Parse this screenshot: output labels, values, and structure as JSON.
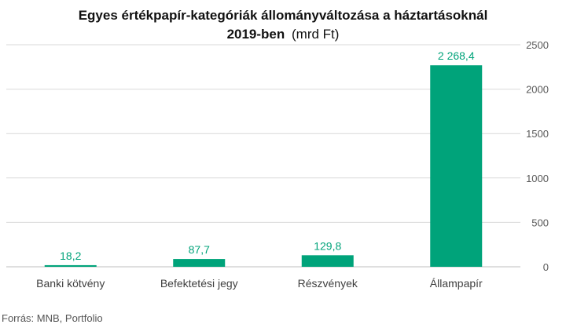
{
  "title_line1": "Egyes értékpapír-kategóriák állományváltozása a háztartásoknál",
  "title_line2": "2019-ben",
  "title_unit": "(mrd Ft)",
  "source": "Forrás: MNB, Portfolio",
  "colors": {
    "bar": "#00a37a",
    "label": "#00a37a",
    "grid": "#d9d9d9",
    "axis_text": "#595959"
  },
  "chart_data": {
    "type": "bar",
    "title": "Egyes értékpapír-kategóriák állományváltozása a háztartásoknál 2019-ben (mrd Ft)",
    "categories": [
      "Banki kötvény",
      "Befektetési jegy",
      "Részvények",
      "Állampapír"
    ],
    "values": [
      18.2,
      87.7,
      129.8,
      2268.4
    ],
    "value_labels": [
      "18,2",
      "87,7",
      "129,8",
      "2 268,4"
    ],
    "ylim": [
      0,
      2500
    ],
    "yticks": [
      0,
      500,
      1000,
      1500,
      2000,
      2500
    ],
    "ytick_labels": [
      "0",
      "500",
      "1000",
      "1500",
      "2000",
      "2500"
    ],
    "yaxis_side": "right",
    "grid": true,
    "legend": "none"
  }
}
